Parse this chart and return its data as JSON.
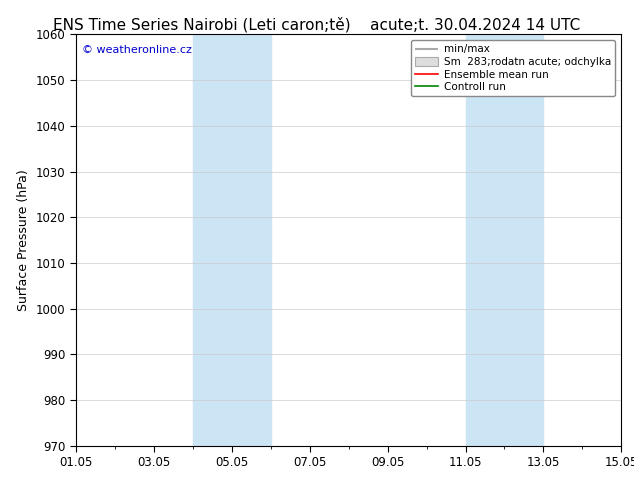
{
  "title_left": "ENS Time Series Nairobi (Leti caron;tě)",
  "title_right": "acute;t. 30.04.2024 14 UTC",
  "ylabel": "Surface Pressure (hPa)",
  "ylim": [
    970,
    1060
  ],
  "yticks": [
    970,
    980,
    990,
    1000,
    1010,
    1020,
    1030,
    1040,
    1050,
    1060
  ],
  "xtick_labels": [
    "01.05",
    "03.05",
    "05.05",
    "07.05",
    "09.05",
    "11.05",
    "13.05",
    "15.05"
  ],
  "xtick_positions": [
    1,
    3,
    5,
    7,
    9,
    11,
    13,
    15
  ],
  "xlim": [
    1,
    15
  ],
  "shade_bands": [
    {
      "start": 4.0,
      "end": 6.0
    },
    {
      "start": 11.0,
      "end": 13.0
    }
  ],
  "shade_color": "#cce5f5",
  "watermark": "© weatheronline.cz",
  "watermark_color": "#0000cc",
  "bg_color": "#ffffff",
  "grid_color": "#cccccc",
  "title_fontsize": 11,
  "axis_fontsize": 9,
  "tick_fontsize": 8.5,
  "legend_fontsize": 7.5
}
